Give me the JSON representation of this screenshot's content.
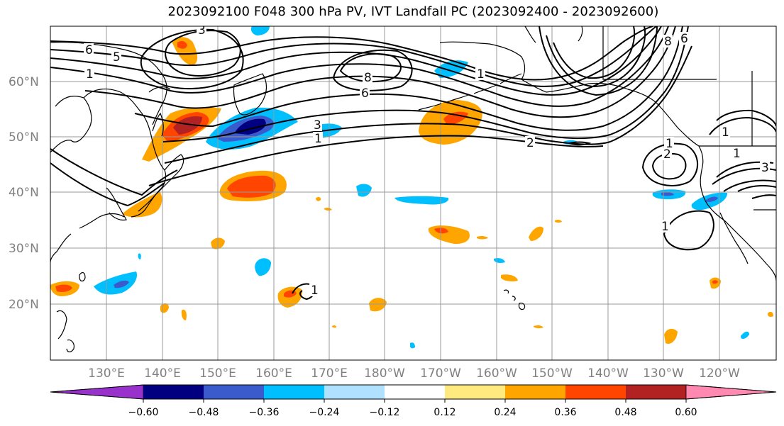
{
  "title": "2023092100 F048 300 hPa PV, IVT Landfall PC (2023092400 - 2023092600)",
  "lat_labels": [
    "60°N",
    "50°N",
    "40°N",
    "30°N",
    "20°N"
  ],
  "lon_labels": [
    "130°E",
    "140°E",
    "150°E",
    "160°E",
    "170°E",
    "180°W",
    "170°W",
    "160°W",
    "150°W",
    "140°W",
    "130°W",
    "120°W"
  ],
  "contour_labels": [
    "6",
    "5",
    "3",
    "1",
    "8",
    "6",
    "3",
    "1",
    "8",
    "6",
    "1",
    "2",
    "1",
    "2",
    "1",
    "1",
    "1",
    "3",
    "1"
  ],
  "colorbar": {
    "tick_labels": [
      "−0.60",
      "−0.48",
      "−0.36",
      "−0.24",
      "−0.12",
      "0.12",
      "0.24",
      "0.36",
      "0.48",
      "0.60"
    ],
    "colors": [
      "#9932cc",
      "#000080",
      "#3b5bcc",
      "#00bfff",
      "#b0e2ff",
      "#ffffff",
      "#ffea80",
      "#ffa500",
      "#ff4500",
      "#b22222",
      "#ff89b0"
    ]
  },
  "colors": {
    "grid": "#999999",
    "contour": "#000000",
    "coast": "#000000"
  }
}
